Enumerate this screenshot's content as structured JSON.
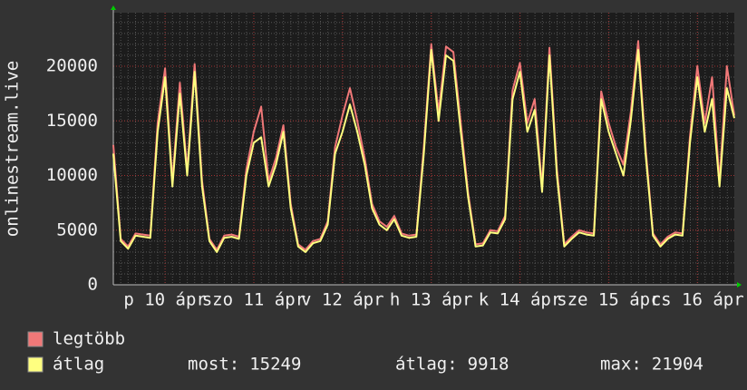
{
  "chart_data": {
    "type": "line",
    "y_label": "onlinestream.live",
    "x": [
      0,
      2,
      4,
      6,
      8,
      10,
      12,
      14,
      16,
      18,
      20,
      22,
      24,
      26,
      28,
      30,
      32,
      34,
      36,
      38,
      40,
      42,
      44,
      46,
      48,
      50,
      52,
      54,
      56,
      58,
      60,
      62,
      64,
      66,
      68,
      70,
      72,
      74,
      76,
      78,
      80,
      82,
      84,
      86,
      88,
      90,
      92,
      94,
      96,
      98,
      100,
      102,
      104,
      106,
      108,
      110,
      112,
      114,
      116,
      118,
      120,
      122,
      124,
      126,
      128,
      130,
      132,
      134,
      136,
      138,
      140,
      142,
      144,
      146,
      148,
      150,
      152,
      154,
      156,
      158,
      160,
      162,
      164,
      166,
      168
    ],
    "xlim": [
      0,
      168
    ],
    "xticks": [
      {
        "value": 14,
        "label": "p 10 ápr"
      },
      {
        "value": 38,
        "label": "szo 11 ápr"
      },
      {
        "value": 62,
        "label": "v 12 ápr"
      },
      {
        "value": 86,
        "label": "h 13 ápr"
      },
      {
        "value": 110,
        "label": "k 14 ápr"
      },
      {
        "value": 134,
        "label": "sze 15 ápr"
      },
      {
        "value": 158,
        "label": "cs 16 ápr"
      }
    ],
    "ylim": [
      0,
      24900
    ],
    "yticks": [
      0,
      5000,
      10000,
      15000,
      20000
    ],
    "grid": true,
    "series": [
      {
        "name": "legtöbb",
        "color": "#f07878",
        "values": [
          12800,
          4200,
          3500,
          4700,
          4600,
          4500,
          14800,
          19800,
          9500,
          18500,
          10500,
          20200,
          9500,
          4200,
          3200,
          4500,
          4600,
          4400,
          10600,
          14000,
          16300,
          9500,
          11600,
          14600,
          7400,
          3700,
          3200,
          4000,
          4200,
          5800,
          12600,
          15500,
          18000,
          15000,
          11600,
          7400,
          5800,
          5300,
          6300,
          4700,
          4500,
          4600,
          12600,
          22000,
          15800,
          21800,
          21300,
          14800,
          8400,
          3700,
          3800,
          5000,
          4900,
          6300,
          17800,
          20300,
          14800,
          17000,
          9000,
          21700,
          10600,
          3700,
          4400,
          5000,
          4800,
          4700,
          17700,
          14800,
          12600,
          11000,
          15800,
          22300,
          12600,
          4700,
          3700,
          4400,
          4800,
          4700,
          13600,
          20000,
          14800,
          19000,
          9500,
          20000,
          15500
        ]
      },
      {
        "name": "átlag",
        "color": "#ffff80",
        "values": [
          12000,
          4000,
          3300,
          4500,
          4400,
          4300,
          14000,
          19000,
          9000,
          17500,
          10000,
          19500,
          9000,
          4000,
          3000,
          4300,
          4400,
          4200,
          10000,
          13000,
          13500,
          9000,
          11000,
          14000,
          7000,
          3500,
          3000,
          3800,
          4000,
          5500,
          12000,
          14000,
          16500,
          14000,
          11000,
          7000,
          5500,
          5000,
          6000,
          4500,
          4300,
          4400,
          12000,
          21500,
          15000,
          21000,
          20500,
          14000,
          8000,
          3500,
          3600,
          4800,
          4700,
          6000,
          17000,
          19500,
          14000,
          16000,
          8500,
          21000,
          10000,
          3500,
          4200,
          4800,
          4600,
          4500,
          17000,
          14000,
          12000,
          10000,
          15000,
          21500,
          12000,
          4500,
          3500,
          4200,
          4600,
          4500,
          13000,
          19000,
          14000,
          17000,
          9000,
          18000,
          15249
        ]
      }
    ],
    "stats": [
      {
        "label": "most:",
        "value": 15249
      },
      {
        "label": "átlag:",
        "value": 9918
      },
      {
        "label": "max:",
        "value": 21904
      }
    ]
  }
}
